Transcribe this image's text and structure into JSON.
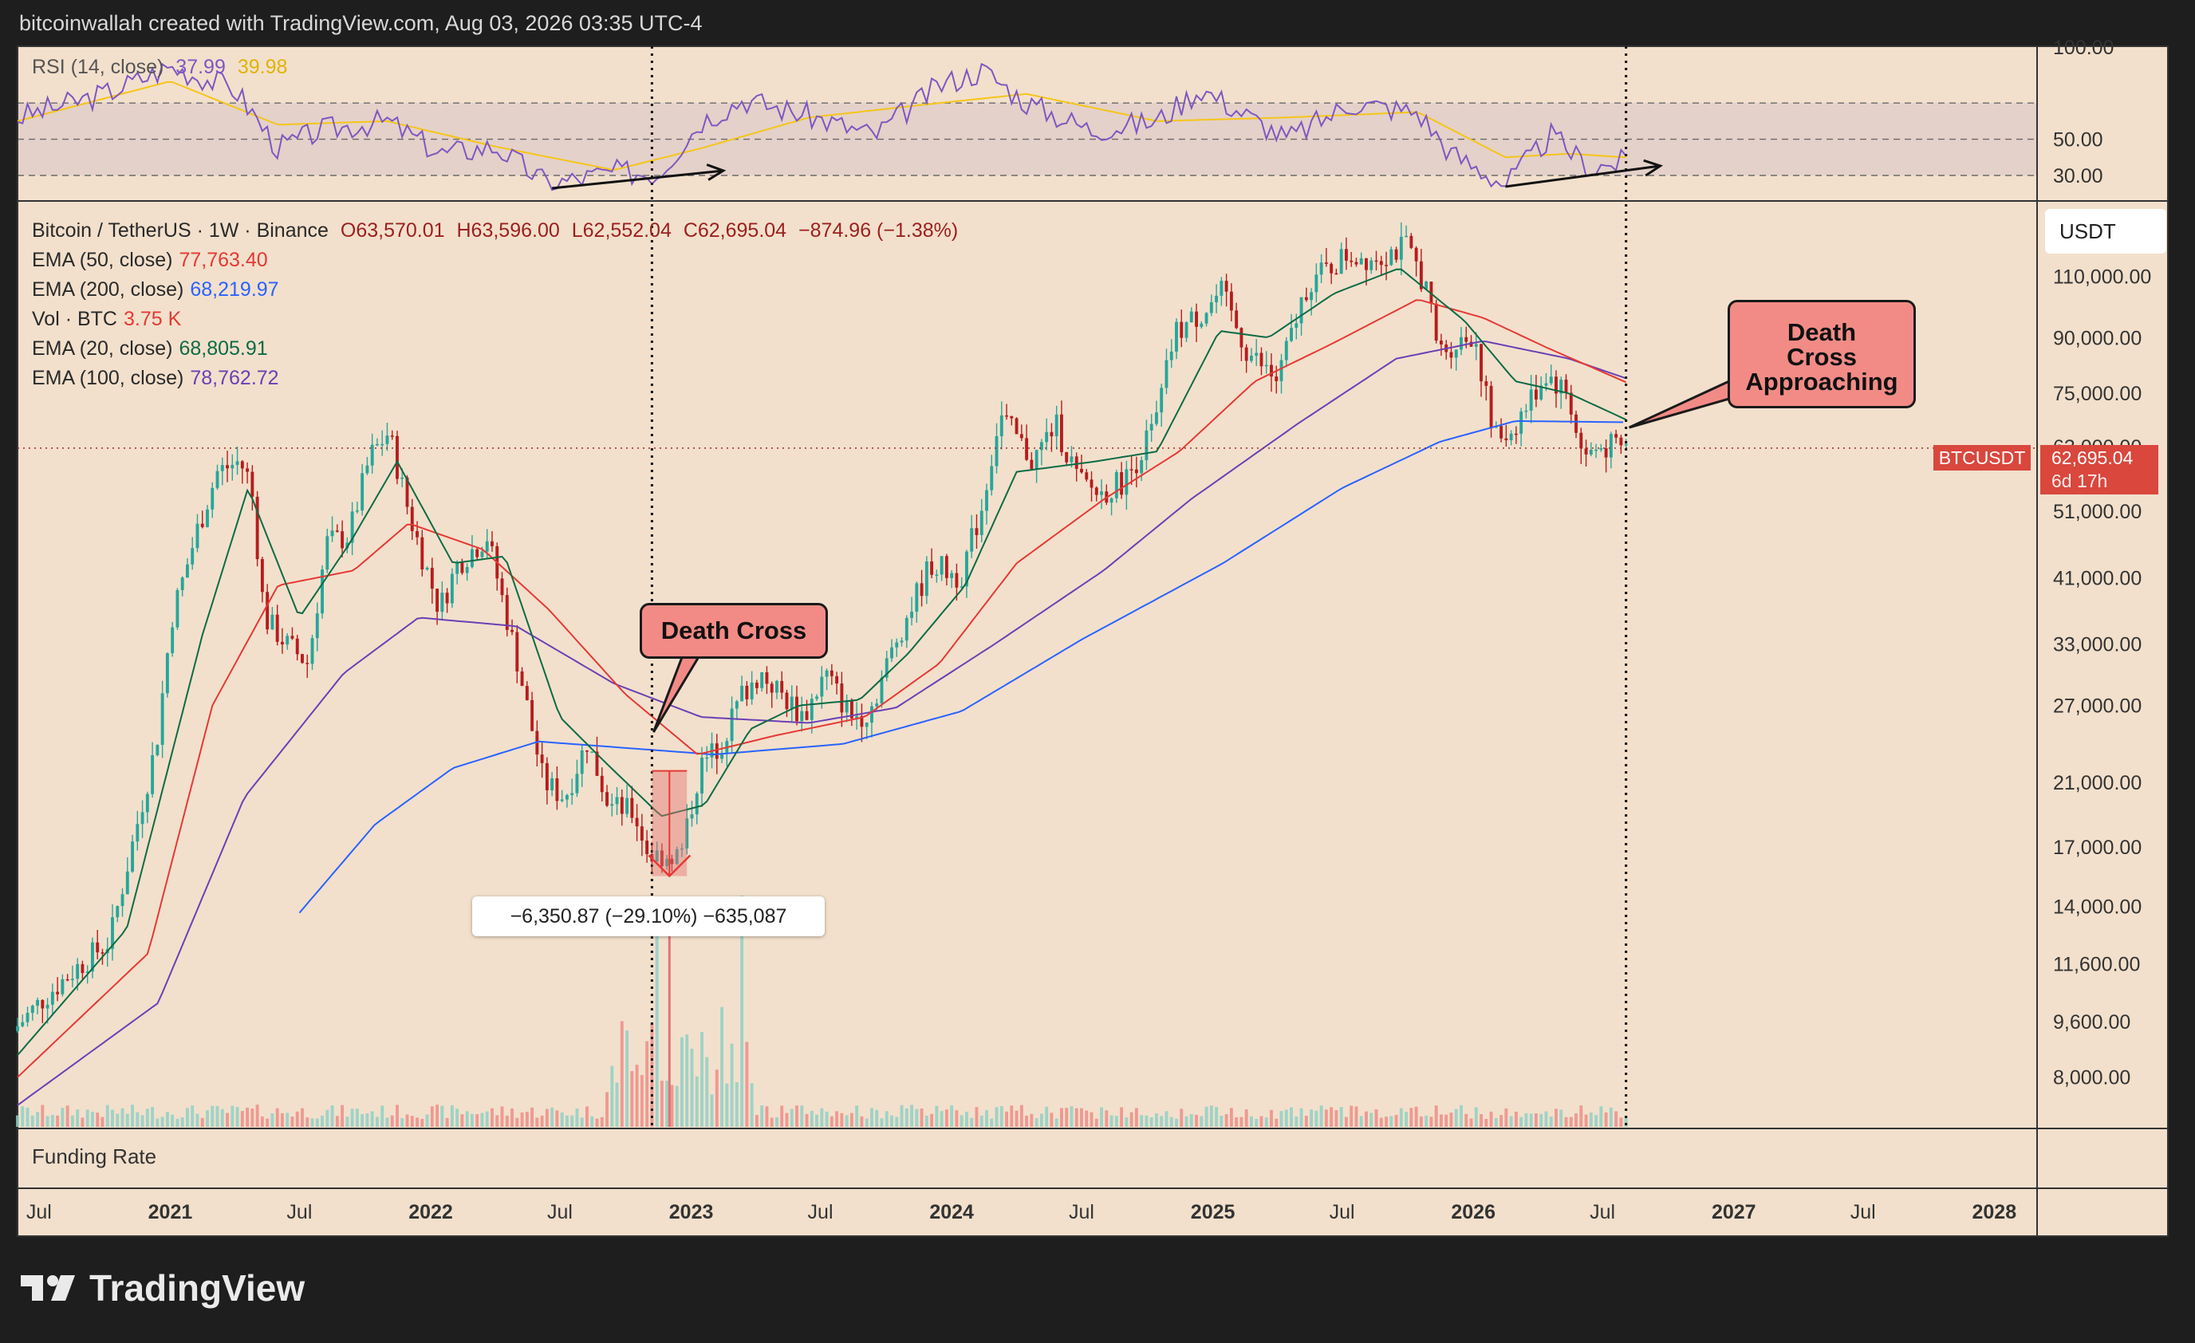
{
  "header": {
    "text": "bitcoinwallah created with TradingView.com, Aug 03, 2026 03:35 UTC-4"
  },
  "rsi_panel": {
    "label": "RSI (14, close)",
    "value1": "37.99",
    "value2": "39.98",
    "levels": [
      "100.00",
      "50.00",
      "30.00"
    ]
  },
  "legend": {
    "symbol": "Bitcoin / TetherUS · 1W · Binance",
    "ohlc": {
      "o": "O63,570.01",
      "h": "H63,596.00",
      "l": "L62,552.04",
      "c": "C62,695.04",
      "chg": "−874.96 (−1.38%)"
    },
    "rows": [
      {
        "label": "EMA (50, close)",
        "value": "77,763.40",
        "color": "#e53935"
      },
      {
        "label": "EMA (200, close)",
        "value": "68,219.97",
        "color": "#2962ff"
      },
      {
        "label": "Vol · BTC",
        "value": "3.75 K",
        "color": "#e53935"
      },
      {
        "label": "EMA (20, close)",
        "value": "68,805.91",
        "color": "#0b6b45"
      },
      {
        "label": "EMA (100, close)",
        "value": "78,762.72",
        "color": "#6b3fb5"
      }
    ]
  },
  "currency_button": "USDT",
  "price_tag": {
    "symbol": "BTCUSDT",
    "price": "62,695.04",
    "countdown": "6d 17h"
  },
  "annotations": {
    "death_cross": "Death Cross",
    "approaching": [
      "Death",
      "Cross",
      "Approaching"
    ],
    "measure": "−6,350.87 (−29.10%) −635,087"
  },
  "funding_label": "Funding Rate",
  "brand": "TradingView",
  "colors": {
    "bg": "#f2e0cc",
    "up": "#26a69a",
    "down": "#b71c1c",
    "ema20": "#0b6b45",
    "ema50": "#e53935",
    "ema100": "#6b3fb5",
    "ema200": "#2962ff",
    "rsi": "#7e57c2",
    "rsi_ma": "#f5c518"
  },
  "chart_data": {
    "type": "candlestick",
    "title": "Bitcoin / TetherUS · 1W · Binance",
    "y_scale": "log",
    "ylim": [
      6800,
      140000
    ],
    "y_ticks": [
      110000,
      90000,
      75000,
      63000,
      51000,
      41000,
      33000,
      27000,
      21000,
      17000,
      14000,
      11600,
      9600,
      8000
    ],
    "y_tick_labels": [
      "110,000.00",
      "90,000.00",
      "75,000.00",
      "63,000.00",
      "51,000.00",
      "41,000.00",
      "33,000.00",
      "27,000.00",
      "21,000.00",
      "17,000.00",
      "14,000.00",
      "11,600.00",
      "9,600.00",
      "8,000.00"
    ],
    "x_ticks": [
      {
        "date": "2020-07-01",
        "label": "Jul"
      },
      {
        "date": "2021-01-01",
        "label": "2021"
      },
      {
        "date": "2021-07-01",
        "label": "Jul"
      },
      {
        "date": "2022-01-01",
        "label": "2022"
      },
      {
        "date": "2022-07-01",
        "label": "Jul"
      },
      {
        "date": "2023-01-01",
        "label": "2023"
      },
      {
        "date": "2023-07-01",
        "label": "Jul"
      },
      {
        "date": "2024-01-01",
        "label": "2024"
      },
      {
        "date": "2024-07-01",
        "label": "Jul"
      },
      {
        "date": "2025-01-01",
        "label": "2025"
      },
      {
        "date": "2025-07-01",
        "label": "Jul"
      },
      {
        "date": "2026-01-01",
        "label": "2026"
      },
      {
        "date": "2026-07-01",
        "label": "Jul"
      },
      {
        "date": "2027-01-01",
        "label": "2027"
      },
      {
        "date": "2027-07-01",
        "label": "Jul"
      },
      {
        "date": "2028-01-01",
        "label": "2028"
      }
    ],
    "price_path": [
      [
        "2020-06-01",
        9300
      ],
      [
        "2020-07-20",
        10500
      ],
      [
        "2020-09-01",
        11500
      ],
      [
        "2020-10-15",
        12500
      ],
      [
        "2020-11-15",
        17000
      ],
      [
        "2020-12-20",
        24000
      ],
      [
        "2021-01-10",
        36000
      ],
      [
        "2021-02-15",
        48000
      ],
      [
        "2021-03-15",
        58000
      ],
      [
        "2021-04-15",
        60000
      ],
      [
        "2021-05-01",
        56000
      ],
      [
        "2021-05-20",
        36000
      ],
      [
        "2021-06-20",
        33000
      ],
      [
        "2021-07-20",
        31000
      ],
      [
        "2021-08-15",
        46000
      ],
      [
        "2021-09-15",
        47000
      ],
      [
        "2021-10-15",
        61000
      ],
      [
        "2021-11-10",
        66000
      ],
      [
        "2021-12-10",
        50000
      ],
      [
        "2022-01-20",
        37000
      ],
      [
        "2022-02-15",
        43000
      ],
      [
        "2022-03-28",
        47000
      ],
      [
        "2022-05-10",
        31000
      ],
      [
        "2022-06-15",
        21000
      ],
      [
        "2022-07-15",
        20000
      ],
      [
        "2022-08-15",
        24000
      ],
      [
        "2022-09-15",
        19500
      ],
      [
        "2022-10-20",
        19000
      ],
      [
        "2022-11-10",
        16500
      ],
      [
        "2022-12-25",
        16600
      ],
      [
        "2023-01-20",
        22000
      ],
      [
        "2023-02-20",
        24000
      ],
      [
        "2023-03-20",
        28000
      ],
      [
        "2023-04-15",
        30000
      ],
      [
        "2023-06-15",
        26000
      ],
      [
        "2023-07-15",
        30000
      ],
      [
        "2023-08-20",
        26000
      ],
      [
        "2023-09-15",
        26500
      ],
      [
        "2023-10-25",
        34000
      ],
      [
        "2023-12-10",
        43000
      ],
      [
        "2024-01-20",
        41000
      ],
      [
        "2024-02-20",
        52000
      ],
      [
        "2024-03-15",
        70000
      ],
      [
        "2024-05-01",
        60000
      ],
      [
        "2024-06-01",
        68000
      ],
      [
        "2024-07-05",
        56000
      ],
      [
        "2024-08-05",
        54000
      ],
      [
        "2024-09-10",
        57000
      ],
      [
        "2024-10-20",
        68000
      ],
      [
        "2024-11-15",
        91000
      ],
      [
        "2024-12-20",
        97000
      ],
      [
        "2025-01-20",
        104000
      ],
      [
        "2025-02-25",
        86000
      ],
      [
        "2025-04-08",
        78000
      ],
      [
        "2025-05-20",
        107000
      ],
      [
        "2025-07-15",
        118000
      ],
      [
        "2025-08-15",
        117000
      ],
      [
        "2025-10-06",
        121000
      ],
      [
        "2025-11-01",
        108000
      ],
      [
        "2025-11-20",
        86000
      ],
      [
        "2026-01-10",
        91000
      ],
      [
        "2026-02-05",
        65000
      ],
      [
        "2026-03-01",
        66000
      ],
      [
        "2026-04-20",
        80000
      ],
      [
        "2026-05-20",
        75000
      ],
      [
        "2026-06-10",
        61000
      ],
      [
        "2026-07-10",
        63000
      ],
      [
        "2026-08-03",
        62695
      ]
    ],
    "ema20_path": [
      [
        "2020-06-01",
        8600
      ],
      [
        "2020-11-01",
        13000
      ],
      [
        "2021-02-15",
        34000
      ],
      [
        "2021-04-20",
        55000
      ],
      [
        "2021-07-01",
        36000
      ],
      [
        "2021-09-10",
        46000
      ],
      [
        "2021-11-15",
        60000
      ],
      [
        "2022-02-01",
        43000
      ],
      [
        "2022-04-15",
        44000
      ],
      [
        "2022-07-01",
        26000
      ],
      [
        "2022-09-01",
        22500
      ],
      [
        "2022-11-20",
        18800
      ],
      [
        "2023-01-20",
        19500
      ],
      [
        "2023-03-25",
        25000
      ],
      [
        "2023-06-01",
        27000
      ],
      [
        "2023-08-25",
        27500
      ],
      [
        "2023-11-01",
        32000
      ],
      [
        "2024-01-20",
        40000
      ],
      [
        "2024-04-01",
        58000
      ],
      [
        "2024-07-20",
        60000
      ],
      [
        "2024-10-15",
        62000
      ],
      [
        "2025-01-10",
        92000
      ],
      [
        "2025-03-20",
        90000
      ],
      [
        "2025-06-20",
        104000
      ],
      [
        "2025-09-20",
        113000
      ],
      [
        "2025-12-20",
        95000
      ],
      [
        "2026-03-01",
        78000
      ],
      [
        "2026-05-15",
        75000
      ],
      [
        "2026-08-03",
        68806
      ]
    ],
    "ema50_path": [
      [
        "2020-06-01",
        8000
      ],
      [
        "2020-12-01",
        12000
      ],
      [
        "2021-03-01",
        27000
      ],
      [
        "2021-06-01",
        40000
      ],
      [
        "2021-09-15",
        42000
      ],
      [
        "2021-12-01",
        49000
      ],
      [
        "2022-03-15",
        45000
      ],
      [
        "2022-06-15",
        37000
      ],
      [
        "2022-10-01",
        28000
      ],
      [
        "2023-01-10",
        23000
      ],
      [
        "2023-05-01",
        24500
      ],
      [
        "2023-09-01",
        26000
      ],
      [
        "2023-12-15",
        31000
      ],
      [
        "2024-04-01",
        43000
      ],
      [
        "2024-08-01",
        53000
      ],
      [
        "2024-11-15",
        62000
      ],
      [
        "2025-03-01",
        78000
      ],
      [
        "2025-06-15",
        88000
      ],
      [
        "2025-10-15",
        102000
      ],
      [
        "2026-01-15",
        96000
      ],
      [
        "2026-04-15",
        87000
      ],
      [
        "2026-08-03",
        77763
      ]
    ],
    "ema100_path": [
      [
        "2020-06-01",
        7300
      ],
      [
        "2020-12-15",
        10200
      ],
      [
        "2021-04-15",
        20000
      ],
      [
        "2021-09-01",
        30000
      ],
      [
        "2021-12-15",
        36000
      ],
      [
        "2022-05-01",
        35000
      ],
      [
        "2022-09-15",
        29000
      ],
      [
        "2023-01-15",
        26000
      ],
      [
        "2023-06-15",
        25500
      ],
      [
        "2023-10-15",
        26800
      ],
      [
        "2024-03-01",
        33000
      ],
      [
        "2024-08-01",
        42000
      ],
      [
        "2024-12-01",
        53000
      ],
      [
        "2025-05-01",
        68000
      ],
      [
        "2025-09-15",
        84000
      ],
      [
        "2026-01-15",
        89000
      ],
      [
        "2026-05-15",
        84000
      ],
      [
        "2026-08-03",
        78763
      ]
    ],
    "ema200_path": [
      [
        "2021-07-01",
        13700
      ],
      [
        "2021-10-15",
        18300
      ],
      [
        "2022-02-01",
        22000
      ],
      [
        "2022-06-01",
        24000
      ],
      [
        "2022-10-01",
        23500
      ],
      [
        "2023-02-01",
        23000
      ],
      [
        "2023-08-01",
        23800
      ],
      [
        "2024-01-15",
        26500
      ],
      [
        "2024-07-01",
        33500
      ],
      [
        "2025-01-15",
        43000
      ],
      [
        "2025-07-01",
        55000
      ],
      [
        "2025-11-15",
        64000
      ],
      [
        "2026-03-01",
        68500
      ],
      [
        "2026-08-03",
        68220
      ]
    ],
    "rsi_path": [
      [
        "2020-06-01",
        62
      ],
      [
        "2020-10-01",
        75
      ],
      [
        "2021-01-01",
        90
      ],
      [
        "2021-04-01",
        78
      ],
      [
        "2021-06-01",
        45
      ],
      [
        "2021-08-01",
        55
      ],
      [
        "2021-11-01",
        60
      ],
      [
        "2022-01-15",
        42
      ],
      [
        "2022-04-01",
        46
      ],
      [
        "2022-06-15",
        25
      ],
      [
        "2022-09-15",
        32
      ],
      [
        "2022-11-15",
        31
      ],
      [
        "2023-01-15",
        60
      ],
      [
        "2023-03-15",
        72
      ],
      [
        "2023-06-15",
        63
      ],
      [
        "2023-09-15",
        52
      ],
      [
        "2023-12-15",
        80
      ],
      [
        "2024-02-15",
        88
      ],
      [
        "2024-04-15",
        70
      ],
      [
        "2024-07-15",
        55
      ],
      [
        "2024-10-15",
        60
      ],
      [
        "2024-12-15",
        78
      ],
      [
        "2025-04-15",
        50
      ],
      [
        "2025-07-15",
        70
      ],
      [
        "2025-10-15",
        65
      ],
      [
        "2025-12-01",
        42
      ],
      [
        "2026-02-15",
        25
      ],
      [
        "2026-04-20",
        52
      ],
      [
        "2026-06-15",
        34
      ],
      [
        "2026-08-03",
        38
      ]
    ],
    "rsi_ma_path": [
      [
        "2020-06-01",
        60
      ],
      [
        "2021-01-01",
        82
      ],
      [
        "2021-06-01",
        58
      ],
      [
        "2021-11-01",
        60
      ],
      [
        "2022-04-01",
        46
      ],
      [
        "2022-09-15",
        33
      ],
      [
        "2023-01-15",
        45
      ],
      [
        "2023-06-15",
        62
      ],
      [
        "2023-12-15",
        70
      ],
      [
        "2024-04-15",
        75
      ],
      [
        "2024-10-15",
        60
      ],
      [
        "2025-04-15",
        62
      ],
      [
        "2025-10-15",
        65
      ],
      [
        "2026-02-15",
        40
      ],
      [
        "2026-05-15",
        42
      ],
      [
        "2026-08-03",
        40
      ]
    ],
    "vertical_markers": [
      "2022-11-07",
      "2026-08-03"
    ],
    "death_cross_date": "2022-11-07",
    "measure_range": {
      "from_date": "2022-11-07",
      "to_date": "2022-12-26",
      "from_price": 21800,
      "to_price": 15450
    }
  }
}
